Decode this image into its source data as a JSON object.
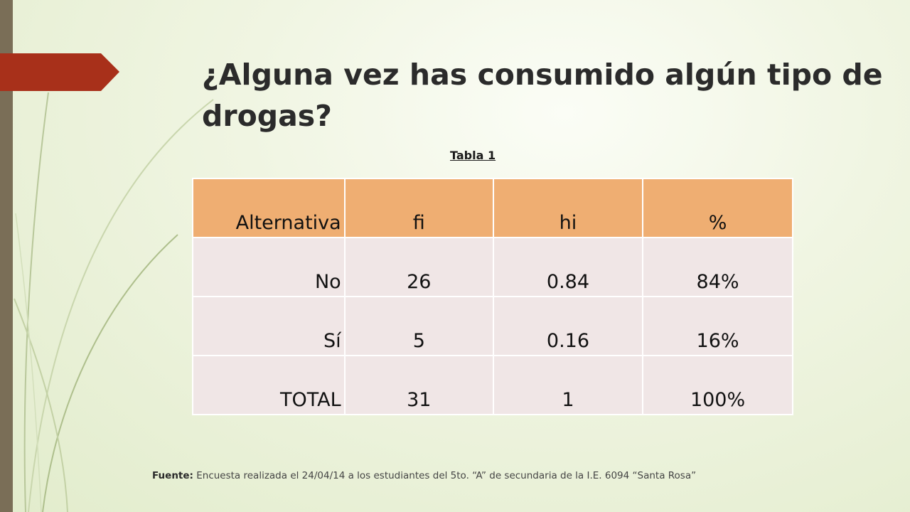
{
  "slide": {
    "title": "¿Alguna vez has consumido algún tipo de drogas?",
    "table_caption": "Tabla 1"
  },
  "table": {
    "headers": [
      "Alternativa",
      "fi",
      "hi",
      "%"
    ],
    "rows": [
      [
        "No",
        "26",
        "0.84",
        "84%"
      ],
      [
        "Sí",
        "5",
        "0.16",
        "16%"
      ],
      [
        "TOTAL",
        "31",
        "1",
        "100%"
      ]
    ]
  },
  "footer": {
    "source_label": "Fuente:",
    "source_text": " Encuesta realizada el 24/04/14 a los estudiantes del 5to. “A” de secundaria de la I.E. 6094 “Santa Rosa”"
  },
  "colors": {
    "header_fill": "#efae72",
    "cell_fill": "#f0e6e6",
    "accent": "#a8301a",
    "side_bar": "#7a6e57"
  }
}
